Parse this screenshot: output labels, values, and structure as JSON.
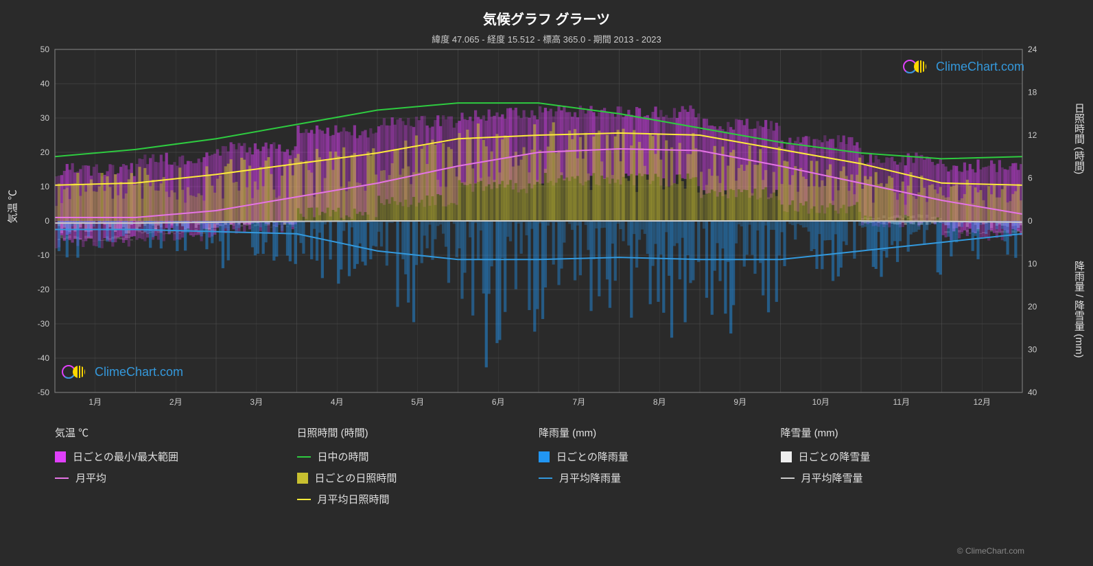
{
  "title": "気候グラフ グラーツ",
  "subtitle": "緯度 47.065 - 経度 15.512 - 標高 365.0 - 期間 2013 - 2023",
  "watermark_text": "ClimeChart.com",
  "attribution": "© ClimeChart.com",
  "axis_labels": {
    "left": "気温 ℃",
    "right_top": "日照時間 (時間)",
    "right_bottom": "降雨量 / 降雪量 (mm)"
  },
  "chart": {
    "background": "#2a2a2a",
    "grid_color": "#555555",
    "border_color": "#888888",
    "temp_range": [
      -50,
      50
    ],
    "temp_ticks": [
      -50,
      -40,
      -30,
      -20,
      -10,
      0,
      10,
      20,
      30,
      40,
      50
    ],
    "sun_range": [
      0,
      24
    ],
    "sun_ticks": [
      0,
      6,
      12,
      18,
      24
    ],
    "precip_range": [
      0,
      40
    ],
    "precip_ticks": [
      0,
      10,
      20,
      30,
      40
    ],
    "months": [
      "1月",
      "2月",
      "3月",
      "4月",
      "5月",
      "6月",
      "7月",
      "8月",
      "9月",
      "10月",
      "11月",
      "12月"
    ],
    "lines": {
      "daylight": {
        "color": "#2ecc40",
        "values": [
          9.0,
          10.0,
          11.5,
          13.5,
          15.5,
          16.5,
          16.5,
          15.0,
          13.0,
          11.0,
          9.5,
          8.7,
          9.0
        ]
      },
      "avg_sun": {
        "color": "#ffeb3b",
        "values": [
          5.0,
          5.3,
          6.5,
          8.0,
          9.5,
          11.5,
          12.0,
          12.3,
          12.0,
          10.0,
          8.0,
          5.3,
          5.0
        ]
      },
      "avg_temp": {
        "color": "#e574e5",
        "values": [
          1.0,
          1.0,
          3.0,
          7.0,
          11.0,
          16.0,
          20.0,
          21.0,
          20.5,
          16.0,
          11.0,
          6.0,
          2.0
        ]
      },
      "avg_rain": {
        "color": "#3399dd",
        "values": [
          2.0,
          2.0,
          2.5,
          3.0,
          7.0,
          9.0,
          9.0,
          8.5,
          9.0,
          9.0,
          7.0,
          5.0,
          3.0
        ]
      },
      "avg_snow": {
        "color": "#cccccc",
        "values": [
          0.5,
          0.5,
          0.3,
          0.1,
          0.0,
          0.0,
          0.0,
          0.0,
          0.0,
          0.0,
          0.0,
          0.1,
          0.3
        ]
      }
    },
    "bars": {
      "temp_range": {
        "color": "#e040fb",
        "opacity": 0.55
      },
      "sun_daily": {
        "color": "#c8c030",
        "opacity": 0.6
      },
      "rain_daily": {
        "color": "#2196f3",
        "opacity": 0.5
      },
      "snow_daily": {
        "color": "#eeeeee",
        "opacity": 0.4
      }
    },
    "monthly_data": [
      {
        "temp_min": -6,
        "temp_max": 15,
        "sun_max": 7,
        "rain_max": 10,
        "snow_max": 3
      },
      {
        "temp_min": -4,
        "temp_max": 18,
        "sun_max": 8,
        "rain_max": 8,
        "snow_max": 2
      },
      {
        "temp_min": -2,
        "temp_max": 21,
        "sun_max": 9,
        "rain_max": 12,
        "snow_max": 1
      },
      {
        "temp_min": 2,
        "temp_max": 26,
        "sun_max": 11,
        "rain_max": 15,
        "snow_max": 0
      },
      {
        "temp_min": 6,
        "temp_max": 29,
        "sun_max": 13,
        "rain_max": 30,
        "snow_max": 0
      },
      {
        "temp_min": 10,
        "temp_max": 31,
        "sun_max": 14,
        "rain_max": 35,
        "snow_max": 0
      },
      {
        "temp_min": 12,
        "temp_max": 32,
        "sun_max": 14,
        "rain_max": 32,
        "snow_max": 0
      },
      {
        "temp_min": 12,
        "temp_max": 32,
        "sun_max": 13,
        "rain_max": 30,
        "snow_max": 0
      },
      {
        "temp_min": 8,
        "temp_max": 28,
        "sun_max": 11,
        "rain_max": 28,
        "snow_max": 0
      },
      {
        "temp_min": 4,
        "temp_max": 23,
        "sun_max": 9,
        "rain_max": 18,
        "snow_max": 0
      },
      {
        "temp_min": 0,
        "temp_max": 18,
        "sun_max": 7,
        "rain_max": 14,
        "snow_max": 1
      },
      {
        "temp_min": -4,
        "temp_max": 16,
        "sun_max": 6,
        "rain_max": 10,
        "snow_max": 2
      }
    ]
  },
  "legend": {
    "groups": [
      {
        "title": "気温 ℃",
        "items": [
          {
            "type": "box",
            "color": "#e040fb",
            "label": "日ごとの最小/最大範囲"
          },
          {
            "type": "line",
            "color": "#e574e5",
            "label": "月平均"
          }
        ]
      },
      {
        "title": "日照時間 (時間)",
        "items": [
          {
            "type": "line",
            "color": "#2ecc40",
            "label": "日中の時間"
          },
          {
            "type": "box",
            "color": "#c8c030",
            "label": "日ごとの日照時間"
          },
          {
            "type": "line",
            "color": "#ffeb3b",
            "label": "月平均日照時間"
          }
        ]
      },
      {
        "title": "降雨量 (mm)",
        "items": [
          {
            "type": "box",
            "color": "#2196f3",
            "label": "日ごとの降雨量"
          },
          {
            "type": "line",
            "color": "#3399dd",
            "label": "月平均降雨量"
          }
        ]
      },
      {
        "title": "降雪量 (mm)",
        "items": [
          {
            "type": "box",
            "color": "#eeeeee",
            "label": "日ごとの降雪量"
          },
          {
            "type": "line",
            "color": "#cccccc",
            "label": "月平均降雪量"
          }
        ]
      }
    ]
  }
}
